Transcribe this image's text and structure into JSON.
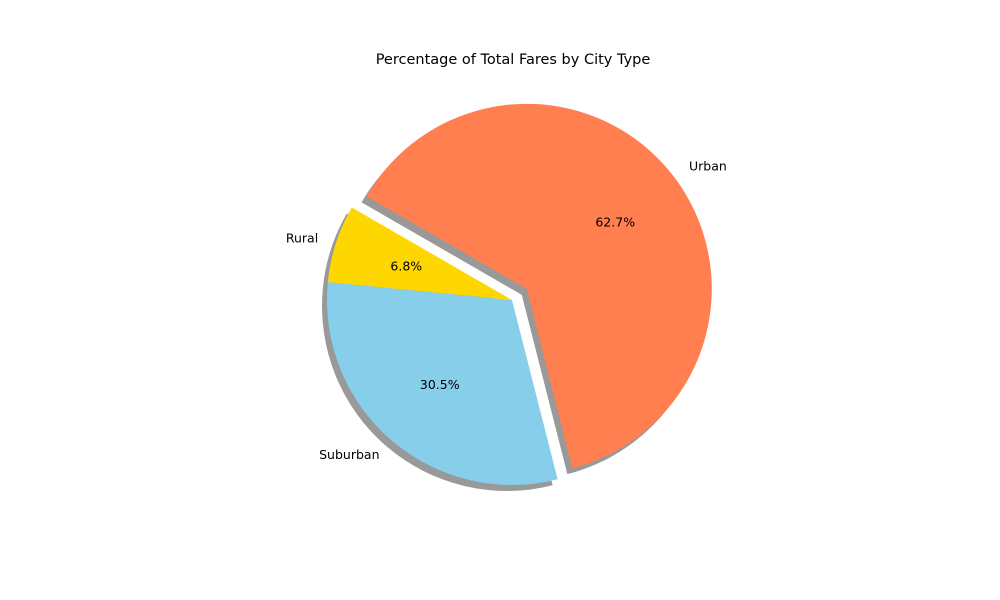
{
  "chart_data": {
    "type": "pie",
    "title": "Percentage of Total Fares by City Type",
    "categories": [
      "Rural",
      "Suburban",
      "Urban"
    ],
    "values": [
      6.8,
      30.5,
      62.7
    ],
    "percent_labels": [
      "6.8%",
      "30.5%",
      "62.7%"
    ],
    "colors": [
      "#FFD700",
      "#87CEEB",
      "#FF7F50"
    ],
    "exploded": [
      "Urban"
    ],
    "shadow": true,
    "start_angle_deg": 150,
    "legend": "none"
  }
}
